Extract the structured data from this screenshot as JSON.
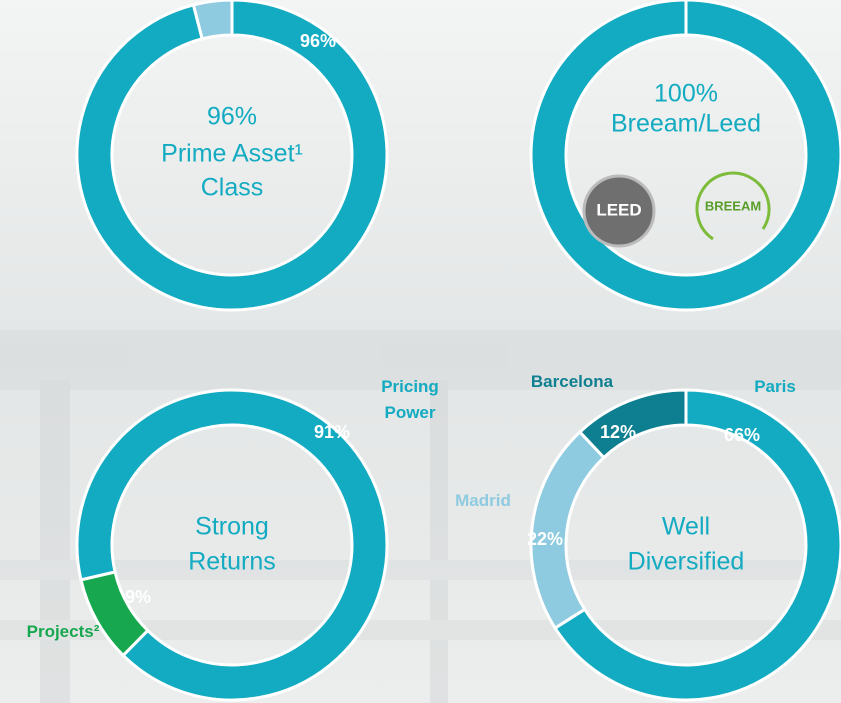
{
  "chart_data": [
    {
      "type": "pie",
      "values": [
        96,
        4
      ],
      "value_labels": [
        "96%",
        null
      ],
      "colors": [
        "#13abc1",
        "#8ecbe0"
      ],
      "center_text": [
        "96%",
        "Prime Asset¹",
        "Class"
      ]
    },
    {
      "type": "pie",
      "values": [
        100
      ],
      "colors": [
        "#13abc1"
      ],
      "center_text": [
        "100%",
        "Breeam/Leed"
      ],
      "logos": [
        "LEED",
        "BREEAM"
      ]
    },
    {
      "type": "pie",
      "categories": [
        "Pricing Power",
        "Projects²"
      ],
      "values": [
        91,
        9
      ],
      "value_labels": [
        "91%",
        "9%"
      ],
      "colors": [
        "#13abc1",
        "#17a84f"
      ],
      "center_text": [
        "Strong",
        "Returns"
      ]
    },
    {
      "type": "pie",
      "categories": [
        "Paris",
        "Madrid",
        "Barcelona"
      ],
      "values": [
        66,
        22,
        12
      ],
      "value_labels": [
        "66%",
        "22%",
        "12%"
      ],
      "colors": [
        "#13abc1",
        "#8ecbe0",
        "#0e7f90"
      ],
      "center_text": [
        "Well",
        "Diversified"
      ]
    }
  ]
}
